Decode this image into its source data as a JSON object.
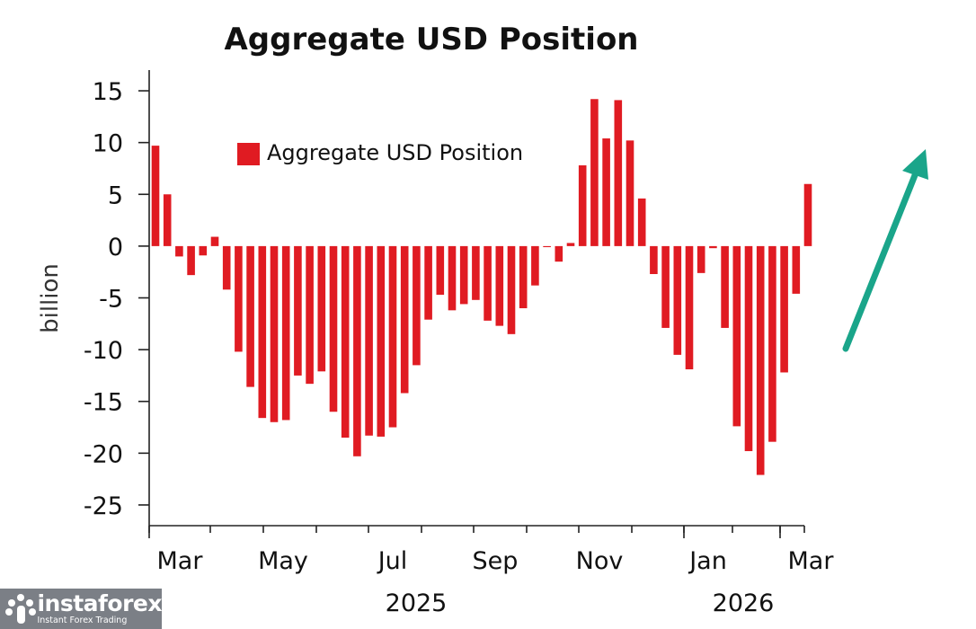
{
  "chart_data": {
    "type": "bar",
    "title": "Aggregate USD Position",
    "ylabel": "billion",
    "xlabel": "",
    "ylim": [
      -27,
      17
    ],
    "yticks": [
      15,
      10,
      5,
      0,
      -5,
      -10,
      -15,
      -20,
      -25
    ],
    "legend": {
      "label": "Aggregate USD Position",
      "position": "top-left",
      "color": "#e01b22"
    },
    "series": [
      {
        "name": "Aggregate USD Position",
        "color": "#e01b22",
        "values": [
          9.7,
          5.0,
          -1.0,
          -2.8,
          -0.9,
          0.9,
          -4.2,
          -10.2,
          -13.6,
          -16.6,
          -17.0,
          -16.8,
          -12.5,
          -13.3,
          -12.1,
          -16.0,
          -18.5,
          -20.3,
          -18.3,
          -18.4,
          -17.5,
          -14.2,
          -11.5,
          -7.1,
          -4.7,
          -6.2,
          -5.6,
          -5.2,
          -7.2,
          -7.7,
          -8.5,
          -6.0,
          -3.8,
          -0.1,
          -1.5,
          0.3,
          7.8,
          14.2,
          10.4,
          14.1,
          10.2,
          4.6,
          -2.7,
          -7.9,
          -10.5,
          -11.9,
          -2.6,
          -0.2,
          -7.9,
          -17.4,
          -19.8,
          -22.1,
          -18.9,
          -12.2,
          -4.6,
          6.0
        ]
      }
    ],
    "xticks": [
      "Mar",
      "May",
      "Jul",
      "Sep",
      "Nov",
      "Jan",
      "Mar"
    ],
    "year_labels": [
      "2025",
      "2026"
    ],
    "annotation": "upward trend arrow"
  },
  "branding": {
    "name": "instaforex",
    "tagline": "Instant Forex Trading"
  },
  "colors": {
    "bar": "#e01b22",
    "arrow": "#1aa58a",
    "logo_bg": "#7b7f86"
  }
}
